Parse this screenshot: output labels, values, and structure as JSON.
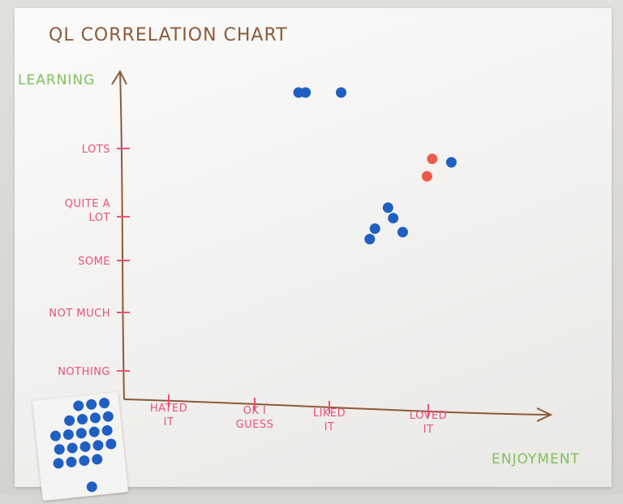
{
  "chart_data": {
    "type": "scatter",
    "title": "QL CORRELATION CHART",
    "xlabel": "ENJOYMENT",
    "ylabel": "LEARNING",
    "x_categories": [
      {
        "lines": [
          "HATED",
          "IT"
        ]
      },
      {
        "lines": [
          "OK I",
          "GUESS"
        ]
      },
      {
        "lines": [
          "LIKED",
          "IT"
        ]
      },
      {
        "lines": [
          "LOVED",
          "IT"
        ]
      }
    ],
    "y_categories": [
      {
        "lines": [
          "NOTHING"
        ]
      },
      {
        "lines": [
          "NOT MUCH"
        ]
      },
      {
        "lines": [
          "SOME"
        ]
      },
      {
        "lines": [
          "QUITE A",
          "LOT"
        ]
      },
      {
        "lines": [
          "LOTS"
        ]
      }
    ],
    "xlim": [
      0,
      4.4
    ],
    "ylim": [
      0,
      5.5
    ],
    "grid": false,
    "series": [
      {
        "color": "#1f5fc2",
        "points": [
          {
            "x": 2.01,
            "y": 5.0
          },
          {
            "x": 2.09,
            "y": 5.0
          },
          {
            "x": 2.5,
            "y": 5.0
          },
          {
            "x": 3.77,
            "y": 4.0
          },
          {
            "x": 3.04,
            "y": 3.35
          },
          {
            "x": 2.89,
            "y": 3.05
          },
          {
            "x": 3.1,
            "y": 3.2
          },
          {
            "x": 2.83,
            "y": 2.9
          },
          {
            "x": 3.21,
            "y": 3.0
          }
        ]
      },
      {
        "color": "#ec5a4a",
        "points": [
          {
            "x": 3.55,
            "y": 4.05
          },
          {
            "x": 3.49,
            "y": 3.8
          }
        ]
      }
    ]
  },
  "sticker_sheet": {
    "color": "#1f5fc2"
  }
}
